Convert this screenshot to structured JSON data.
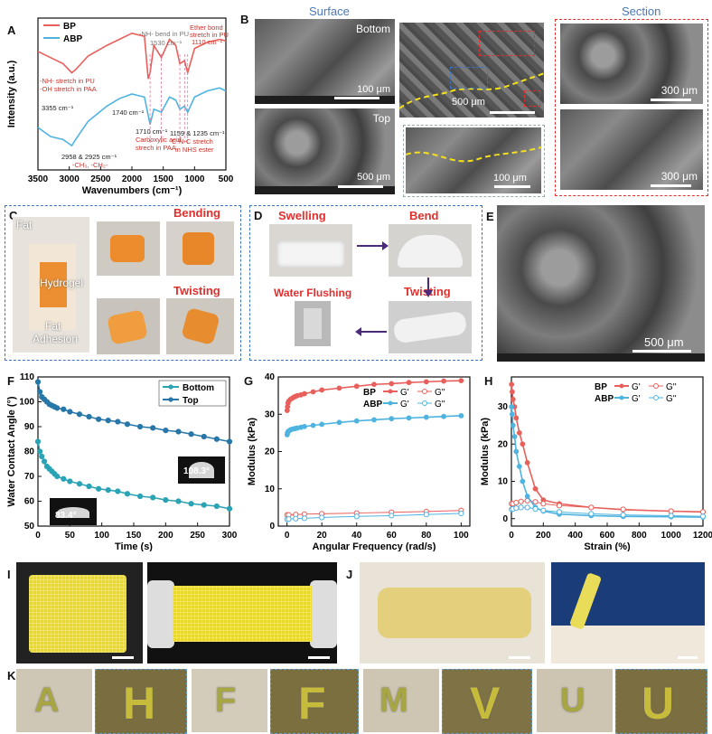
{
  "panels": {
    "A": "A",
    "B": "B",
    "C": "C",
    "D": "D",
    "E": "E",
    "F": "F",
    "G": "G",
    "H": "H",
    "I": "I",
    "J": "J",
    "K": "K"
  },
  "panelA": {
    "legend": [
      "BP",
      "ABP"
    ],
    "ylabel": "Intensity (a.u.)",
    "xlabel": "Wavenumbers (cm⁻¹)",
    "ann": {
      "nh_pu": "-NH- stretch in PU",
      "oh_paa": "-OH stretch in PAA",
      "v3355": "3355 cm⁻¹",
      "ch": "2958 & 2925 cm⁻¹",
      "ch2": "-CH₃, -CH₂-",
      "v1740": "1740 cm⁻¹",
      "v1710": "1710 cm⁻¹",
      "carbox1": "Carboxylic acid",
      "carbox2": "strech in PAA",
      "nhbend": "-NH- bend in PU",
      "v1530": "1530 cm⁻¹",
      "ether1": "Ether bond",
      "ether2": "stretch in PU",
      "v1110": "1110 cm⁻¹",
      "cnc0": "1159 & 1235 cm⁻¹",
      "cnc1": "C-N-C stretch",
      "cnc2": "in NHS ester"
    }
  },
  "panelB": {
    "surface": "Surface",
    "section": "Section",
    "bottom": "Bottom",
    "top": "Top",
    "sb100a": "100 μm",
    "sb500a": "500 μm",
    "sb500b": "500 μm",
    "sb100b": "100 μm",
    "sb300a": "300 μm",
    "sb300b": "300 μm"
  },
  "panelC": {
    "fat": "Fat",
    "hydrogel": "Hydrogel",
    "adh1": "Fat",
    "adh2": "Adhesion",
    "bending": "Bending",
    "twisting": "Twisting"
  },
  "panelD": {
    "swelling": "Swelling",
    "bend": "Bend",
    "flushing": "Water Flushing",
    "twisting": "Twisting"
  },
  "panelE": {
    "sb": "500 μm"
  },
  "panelF_extra": {
    "angle_top": "108.3°",
    "angle_bottom": "83.4°"
  },
  "panelG_extra": {
    "legend_gp": "G'",
    "legend_gpp": "G''"
  },
  "panelK": {
    "letters": [
      "A",
      "F",
      "M",
      "U"
    ],
    "zoom": [
      "H",
      "V"
    ]
  },
  "colors": {
    "bp": "#e8605c",
    "abp": "#4fb3e0",
    "bottom": "#2aa3b5",
    "top": "#2777a9"
  },
  "chart_data": [
    {
      "type": "line",
      "title": "",
      "xlabel": "Wavenumbers (cm⁻¹)",
      "ylabel": "Intensity (a.u.)",
      "xlim": [
        3500,
        500
      ],
      "xticks": [
        3500,
        3000,
        2500,
        2000,
        1500,
        1000,
        500
      ],
      "series": [
        {
          "name": "BP",
          "x": [
            3500,
            3300,
            3100,
            2960,
            2900,
            2700,
            2400,
            2200,
            2000,
            1800,
            1740,
            1710,
            1650,
            1530,
            1400,
            1300,
            1235,
            1160,
            1110,
            1000,
            800,
            600,
            500
          ],
          "values": [
            0.78,
            0.74,
            0.7,
            0.64,
            0.66,
            0.75,
            0.82,
            0.86,
            0.9,
            0.88,
            0.6,
            0.64,
            0.82,
            0.74,
            0.86,
            0.82,
            0.7,
            0.72,
            0.64,
            0.8,
            0.84,
            0.86,
            0.85
          ]
        },
        {
          "name": "ABP",
          "x": [
            3500,
            3300,
            3100,
            2960,
            2900,
            2700,
            2400,
            2200,
            2000,
            1800,
            1740,
            1710,
            1650,
            1530,
            1400,
            1300,
            1235,
            1160,
            1110,
            1000,
            800,
            600,
            500
          ],
          "values": [
            0.28,
            0.22,
            0.2,
            0.16,
            0.2,
            0.32,
            0.42,
            0.47,
            0.5,
            0.48,
            0.36,
            0.3,
            0.4,
            0.38,
            0.48,
            0.46,
            0.4,
            0.42,
            0.38,
            0.48,
            0.52,
            0.54,
            0.52
          ]
        }
      ]
    },
    {
      "type": "line",
      "title": "",
      "xlabel": "Time (s)",
      "ylabel": "Water Contact Angle (°)",
      "xlim": [
        0,
        300
      ],
      "ylim": [
        50,
        110
      ],
      "xticks": [
        0,
        50,
        100,
        150,
        200,
        250,
        300
      ],
      "yticks": [
        50,
        60,
        70,
        80,
        90,
        100,
        110
      ],
      "series": [
        {
          "name": "Bottom",
          "x": [
            0,
            3,
            6,
            10,
            14,
            18,
            22,
            26,
            30,
            40,
            50,
            65,
            80,
            95,
            110,
            125,
            140,
            160,
            180,
            200,
            220,
            240,
            260,
            280,
            300
          ],
          "values": [
            84,
            80,
            78,
            76,
            74,
            73,
            72,
            71,
            70,
            69,
            68,
            67,
            66,
            65,
            64.5,
            64,
            63,
            62,
            61.5,
            60.5,
            60,
            59,
            58.5,
            58,
            57
          ]
        },
        {
          "name": "Top",
          "x": [
            0,
            3,
            6,
            10,
            14,
            18,
            22,
            26,
            30,
            40,
            50,
            65,
            80,
            95,
            110,
            125,
            140,
            160,
            180,
            200,
            220,
            240,
            260,
            280,
            300
          ],
          "values": [
            108,
            104,
            102,
            101,
            100,
            99,
            98.5,
            98,
            97.5,
            97,
            96,
            95,
            94,
            93,
            92.5,
            92,
            91,
            90,
            89.5,
            88.5,
            88,
            87,
            86,
            85,
            84
          ]
        }
      ]
    },
    {
      "type": "line",
      "title": "",
      "xlabel": "Angular Frequency (rad/s)",
      "ylabel": "Modulus (kPa)",
      "xlim": [
        -5,
        105
      ],
      "ylim": [
        0,
        40
      ],
      "xticks": [
        0,
        20,
        40,
        60,
        80,
        100
      ],
      "yticks": [
        0,
        10,
        20,
        30,
        40
      ],
      "series": [
        {
          "name": "BP G'",
          "x": [
            0.1,
            0.3,
            0.6,
            1,
            2,
            3,
            4,
            5,
            6,
            8,
            10,
            15,
            20,
            30,
            40,
            50,
            60,
            70,
            80,
            90,
            100
          ],
          "values": [
            31,
            32,
            33,
            33.5,
            34,
            34.3,
            34.6,
            34.8,
            35,
            35.2,
            35.5,
            36,
            36.5,
            37,
            37.5,
            38,
            38.2,
            38.5,
            38.7,
            38.9,
            39
          ]
        },
        {
          "name": "BP G''",
          "x": [
            0.1,
            1,
            5,
            10,
            20,
            40,
            60,
            80,
            100
          ],
          "values": [
            3,
            3,
            3.1,
            3.2,
            3.3,
            3.5,
            3.7,
            3.9,
            4.2
          ]
        },
        {
          "name": "ABP G'",
          "x": [
            0.1,
            0.3,
            0.6,
            1,
            2,
            3,
            4,
            5,
            6,
            8,
            10,
            15,
            20,
            30,
            40,
            50,
            60,
            70,
            80,
            90,
            100
          ],
          "values": [
            24.5,
            25,
            25.3,
            25.5,
            25.8,
            26,
            26.1,
            26.2,
            26.3,
            26.5,
            26.7,
            27,
            27.3,
            27.8,
            28.2,
            28.5,
            28.8,
            29,
            29.2,
            29.4,
            29.6
          ]
        },
        {
          "name": "ABP G''",
          "x": [
            0.1,
            1,
            5,
            10,
            20,
            40,
            60,
            80,
            100
          ],
          "values": [
            1.8,
            1.9,
            2,
            2.1,
            2.3,
            2.6,
            2.8,
            3.1,
            3.4
          ]
        }
      ]
    },
    {
      "type": "line",
      "title": "",
      "xlabel": "Strain (%)",
      "ylabel": "Modulus (kPa)",
      "xlim": [
        0,
        1200
      ],
      "ylim": [
        -2,
        38
      ],
      "xticks": [
        0,
        200,
        400,
        600,
        800,
        1000,
        1200
      ],
      "yticks": [
        0,
        10,
        20,
        30
      ],
      "series": [
        {
          "name": "BP G'",
          "x": [
            1,
            5,
            10,
            20,
            30,
            50,
            70,
            100,
            150,
            200,
            300,
            500,
            700,
            1000,
            1200
          ],
          "values": [
            36,
            34,
            32,
            30,
            27,
            23,
            20,
            15,
            8,
            5,
            4,
            3,
            2.4,
            2,
            1.8
          ]
        },
        {
          "name": "BP G''",
          "x": [
            1,
            10,
            30,
            60,
            100,
            150,
            200,
            300,
            500,
            700,
            1000,
            1200
          ],
          "values": [
            4,
            4,
            4.3,
            4.6,
            4.8,
            4.5,
            4,
            3.5,
            3,
            2.5,
            2,
            1.8
          ]
        },
        {
          "name": "ABP G'",
          "x": [
            1,
            5,
            10,
            20,
            30,
            50,
            70,
            100,
            150,
            200,
            300,
            500,
            700,
            1000,
            1200
          ],
          "values": [
            30,
            28,
            25,
            22,
            18,
            14,
            10,
            6,
            3,
            2,
            1.2,
            0.8,
            0.6,
            0.5,
            0.4
          ]
        },
        {
          "name": "ABP G''",
          "x": [
            1,
            10,
            30,
            60,
            100,
            150,
            200,
            300,
            500,
            700,
            1000,
            1200
          ],
          "values": [
            2.5,
            2.6,
            2.8,
            3,
            3,
            2.6,
            2.2,
            1.8,
            1.3,
            1,
            0.8,
            0.6
          ]
        }
      ]
    }
  ]
}
